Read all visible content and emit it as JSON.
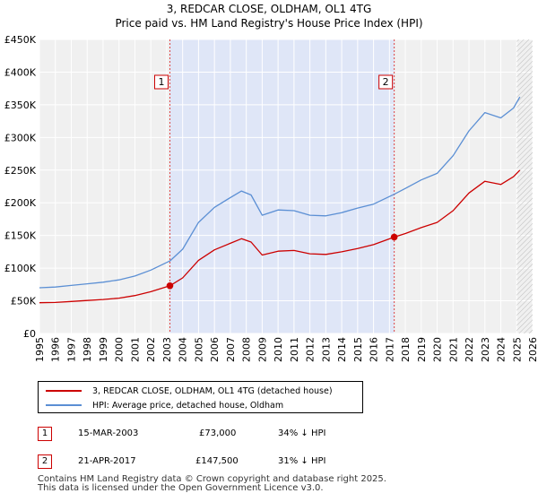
{
  "chart_data": {
    "type": "line",
    "title": "3, REDCAR CLOSE, OLDHAM, OL1 4TG",
    "subtitle": "Price paid vs. HM Land Registry's House Price Index (HPI)",
    "xlim": [
      1995,
      2026
    ],
    "ylim": [
      0,
      450000
    ],
    "x_ticks": [
      "1995",
      "1996",
      "1997",
      "1998",
      "1999",
      "2000",
      "2001",
      "2002",
      "2003",
      "2004",
      "2005",
      "2006",
      "2007",
      "2008",
      "2009",
      "2010",
      "2011",
      "2012",
      "2013",
      "2014",
      "2015",
      "2016",
      "2017",
      "2018",
      "2019",
      "2020",
      "2021",
      "2022",
      "2023",
      "2024",
      "2025",
      "2026"
    ],
    "y_ticks": [
      {
        "value": 0,
        "label": "£0"
      },
      {
        "value": 50000,
        "label": "£50K"
      },
      {
        "value": 100000,
        "label": "£100K"
      },
      {
        "value": 150000,
        "label": "£150K"
      },
      {
        "value": 200000,
        "label": "£200K"
      },
      {
        "value": 250000,
        "label": "£250K"
      },
      {
        "value": 300000,
        "label": "£300K"
      },
      {
        "value": 350000,
        "label": "£350K"
      },
      {
        "value": 400000,
        "label": "£400K"
      },
      {
        "value": 450000,
        "label": "£450K"
      }
    ],
    "shaded_span": [
      2003.2,
      2017.3
    ],
    "hatched_from": 2025.0,
    "series": [
      {
        "name": "3, REDCAR CLOSE, OLDHAM, OL1 4TG (detached house)",
        "color": "#cc0000",
        "points": [
          [
            1995.0,
            47000
          ],
          [
            1996.0,
            47500
          ],
          [
            1997.0,
            49000
          ],
          [
            1998.0,
            50500
          ],
          [
            1999.0,
            52000
          ],
          [
            2000.0,
            54000
          ],
          [
            2001.0,
            58000
          ],
          [
            2002.0,
            64000
          ],
          [
            2003.2,
            73000
          ],
          [
            2004.0,
            85000
          ],
          [
            2005.0,
            112000
          ],
          [
            2006.0,
            128000
          ],
          [
            2007.0,
            138000
          ],
          [
            2007.7,
            145000
          ],
          [
            2008.3,
            140000
          ],
          [
            2009.0,
            120000
          ],
          [
            2010.0,
            126000
          ],
          [
            2011.0,
            127000
          ],
          [
            2012.0,
            122000
          ],
          [
            2013.0,
            121000
          ],
          [
            2014.0,
            125000
          ],
          [
            2015.0,
            130000
          ],
          [
            2016.0,
            136000
          ],
          [
            2017.3,
            147500
          ],
          [
            2018.0,
            153000
          ],
          [
            2019.0,
            162000
          ],
          [
            2020.0,
            170000
          ],
          [
            2021.0,
            188000
          ],
          [
            2022.0,
            215000
          ],
          [
            2023.0,
            233000
          ],
          [
            2024.0,
            228000
          ],
          [
            2024.8,
            240000
          ],
          [
            2025.2,
            250000
          ]
        ]
      },
      {
        "name": "HPI: Average price, detached house, Oldham",
        "color": "#5b8fd4",
        "points": [
          [
            1995.0,
            70000
          ],
          [
            1996.0,
            71000
          ],
          [
            1997.0,
            73500
          ],
          [
            1998.0,
            76000
          ],
          [
            1999.0,
            78500
          ],
          [
            2000.0,
            82000
          ],
          [
            2001.0,
            88000
          ],
          [
            2002.0,
            97000
          ],
          [
            2003.2,
            111000
          ],
          [
            2004.0,
            129000
          ],
          [
            2005.0,
            170000
          ],
          [
            2006.0,
            193000
          ],
          [
            2007.0,
            208000
          ],
          [
            2007.7,
            218000
          ],
          [
            2008.3,
            212000
          ],
          [
            2009.0,
            181000
          ],
          [
            2010.0,
            189000
          ],
          [
            2011.0,
            188000
          ],
          [
            2012.0,
            181000
          ],
          [
            2013.0,
            180000
          ],
          [
            2014.0,
            185000
          ],
          [
            2015.0,
            192000
          ],
          [
            2016.0,
            198000
          ],
          [
            2017.3,
            213000
          ],
          [
            2018.0,
            222000
          ],
          [
            2019.0,
            235000
          ],
          [
            2020.0,
            245000
          ],
          [
            2021.0,
            272000
          ],
          [
            2022.0,
            310000
          ],
          [
            2023.0,
            338000
          ],
          [
            2024.0,
            330000
          ],
          [
            2024.8,
            345000
          ],
          [
            2025.2,
            362000
          ]
        ]
      }
    ],
    "sales": [
      {
        "marker": "1",
        "x": 2003.2,
        "price": 73000
      },
      {
        "marker": "2",
        "x": 2017.3,
        "price": 147500
      }
    ]
  },
  "legend": {
    "property_label": "3, REDCAR CLOSE, OLDHAM, OL1 4TG (detached house)",
    "hpi_label": "HPI: Average price, detached house, Oldham"
  },
  "transactions": [
    {
      "marker": "1",
      "date": "15-MAR-2003",
      "price": "£73,000",
      "hpi": "34% ↓ HPI"
    },
    {
      "marker": "2",
      "date": "21-APR-2017",
      "price": "£147,500",
      "hpi": "31% ↓ HPI"
    }
  ],
  "footer": {
    "line1": "Contains HM Land Registry data © Crown copyright and database right 2025.",
    "line2": "This data is licensed under the Open Government Licence v3.0."
  }
}
